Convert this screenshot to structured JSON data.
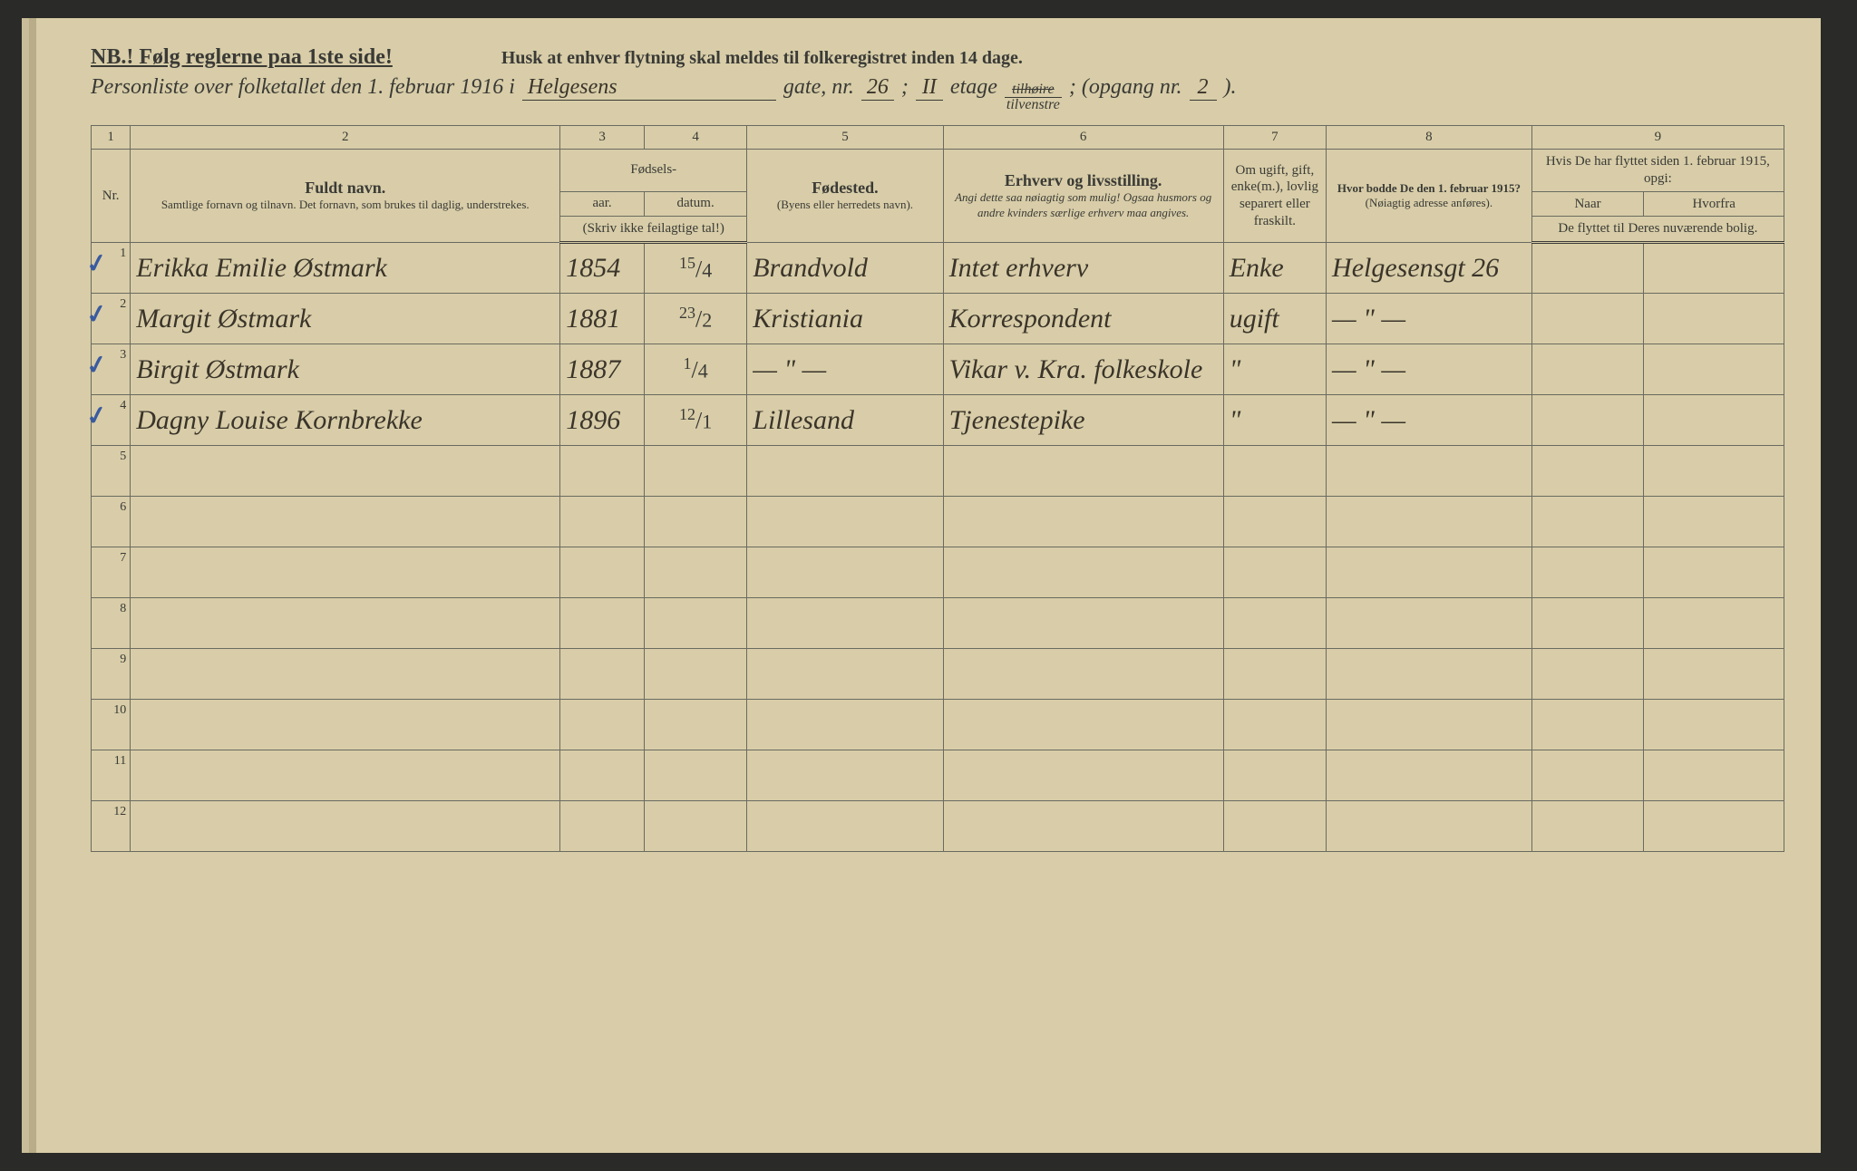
{
  "header": {
    "nb": "NB.! Følg reglerne paa 1ste side!",
    "reminder": "Husk at enhver flytning skal meldes til folkeregistret inden 14 dage.",
    "title_prefix": "Personliste over folketallet den 1. februar 1916 i",
    "street": "Helgesens",
    "gate_label": "gate, nr.",
    "gate_nr": "26",
    "semicolon": ";",
    "etage_val": "II",
    "etage_label": "etage",
    "side_top": "tilhøire",
    "side_bot": "tilvenstre",
    "opgang_label": "; (opgang nr.",
    "opgang_nr": "2",
    "opgang_close": ")."
  },
  "col_numbers": [
    "1",
    "2",
    "3",
    "4",
    "5",
    "6",
    "7",
    "8",
    "9"
  ],
  "columns": {
    "nr": "Nr.",
    "name_main": "Fuldt navn.",
    "name_sub": "Samtlige fornavn og tilnavn.  Det fornavn, som brukes til daglig, understrekes.",
    "birth_main": "Fødsels-",
    "year": "aar.",
    "date": "datum.",
    "birth_note": "(Skriv ikke feilagtige tal!)",
    "birthplace_main": "Fødested.",
    "birthplace_sub": "(Byens eller herredets navn).",
    "occ_main": "Erhverv og livsstilling.",
    "occ_sub": "Angi dette saa nøiagtig som mulig! Ogsaa husmors og andre kvinders særlige erhverv maa angives.",
    "marital": "Om ugift, gift, enke(m.), lovlig separert eller fraskilt.",
    "prev_main": "Hvor bodde De den 1. februar 1915?",
    "prev_sub": "(Nøiagtig adresse anføres).",
    "moved_main": "Hvis De har flyttet siden 1. februar 1915, opgi:",
    "moved_when": "Naar",
    "moved_from": "Hvorfra",
    "moved_sub": "De flyttet til Deres nuværende bolig."
  },
  "rows": [
    {
      "nr": "1",
      "tick": true,
      "name": "Erikka Emilie Østmark",
      "year": "1854",
      "date_n": "15",
      "date_d": "4",
      "birthplace": "Brandvold",
      "occ": "Intet erhverv",
      "marital": "Enke",
      "prev": "Helgesensgt 26"
    },
    {
      "nr": "2",
      "tick": true,
      "name": "Margit Østmark",
      "year": "1881",
      "date_n": "23",
      "date_d": "2",
      "birthplace": "Kristiania",
      "occ": "Korrespondent",
      "marital": "ugift",
      "prev": "— \" —"
    },
    {
      "nr": "3",
      "tick": true,
      "name": "Birgit Østmark",
      "year": "1887",
      "date_n": "1",
      "date_d": "4",
      "birthplace": "— \" —",
      "occ": "Vikar v. Kra. folkeskole",
      "marital": "\"",
      "prev": "— \" —"
    },
    {
      "nr": "4",
      "tick": true,
      "name": "Dagny Louise Kornbrekke",
      "year": "1896",
      "date_n": "12",
      "date_d": "1",
      "birthplace": "Lillesand",
      "occ": "Tjenestepike",
      "marital": "\"",
      "prev": "— \" —"
    },
    {
      "nr": "5"
    },
    {
      "nr": "6"
    },
    {
      "nr": "7"
    },
    {
      "nr": "8"
    },
    {
      "nr": "9"
    },
    {
      "nr": "10"
    },
    {
      "nr": "11"
    },
    {
      "nr": "12"
    }
  ],
  "style": {
    "paper_bg": "#d8cda8",
    "ink": "#3a3a36",
    "hand_ink": "#3a342a",
    "tick_color": "#3a5aa0",
    "rule": "#6a6a60",
    "header_fontsize": 24,
    "body_fontsize": 24,
    "hand_fontsize": 30
  }
}
